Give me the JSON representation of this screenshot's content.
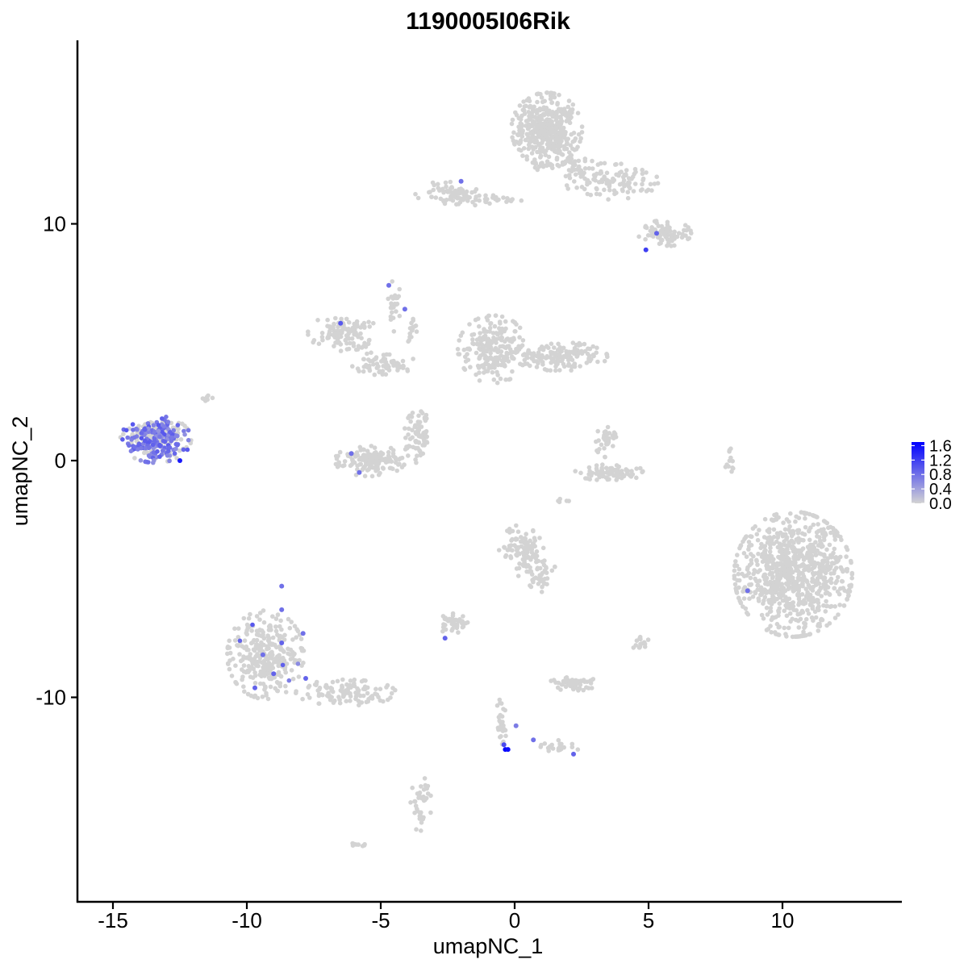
{
  "chart_data": {
    "type": "scatter",
    "title": "1190005I06Rik",
    "xlabel": "umapNC_1",
    "ylabel": "umapNC_2",
    "xlim": [
      -16.5,
      14.5
    ],
    "ylim": [
      -18.5,
      17.5
    ],
    "x_ticks": [
      -15,
      -10,
      -5,
      0,
      5,
      10
    ],
    "x_tick_labels": [
      "-15",
      "-10",
      "-5",
      "0",
      "5",
      "10"
    ],
    "y_ticks": [
      -10,
      0,
      10
    ],
    "y_tick_labels": [
      "-10",
      "0",
      "10"
    ],
    "grid": false,
    "legend": {
      "position": "right",
      "type": "colorbar",
      "min": 0.0,
      "max": 1.7,
      "ticks": [
        0.0,
        0.4,
        0.8,
        1.2,
        1.6
      ],
      "tick_labels": [
        "0.0",
        "0.4",
        "0.8",
        "1.2",
        "1.6"
      ],
      "low_color": "#d3d3d3",
      "high_color": "#0000ff"
    },
    "clusters": [
      {
        "x": 1.2,
        "y": 14.0,
        "rx": 1.2,
        "ry": 1.4,
        "n": 420,
        "expr": 0
      },
      {
        "x": 3.6,
        "y": 11.8,
        "rx": 1.6,
        "ry": 0.7,
        "n": 110,
        "expr": 0
      },
      {
        "x": 5.6,
        "y": 9.6,
        "rx": 0.9,
        "ry": 0.5,
        "n": 80,
        "expr": 0
      },
      {
        "x": -2.5,
        "y": 11.3,
        "rx": 1.1,
        "ry": 0.45,
        "n": 70,
        "expr": 0
      },
      {
        "x": -0.8,
        "y": 11.0,
        "rx": 1.2,
        "ry": 0.25,
        "n": 30,
        "expr": 0
      },
      {
        "x": 2.0,
        "y": 12.5,
        "rx": 1.2,
        "ry": 0.4,
        "n": 40,
        "expr": 0
      },
      {
        "x": -6.4,
        "y": 5.4,
        "rx": 1.2,
        "ry": 0.7,
        "n": 120,
        "expr": 0
      },
      {
        "x": -4.9,
        "y": 4.1,
        "rx": 1.1,
        "ry": 0.45,
        "n": 70,
        "expr": 0
      },
      {
        "x": -4.5,
        "y": 6.4,
        "rx": 0.25,
        "ry": 1.1,
        "n": 25,
        "expr": 0
      },
      {
        "x": -3.8,
        "y": 5.6,
        "rx": 0.2,
        "ry": 0.9,
        "n": 15,
        "expr": 0
      },
      {
        "x": -0.8,
        "y": 4.7,
        "rx": 1.2,
        "ry": 1.3,
        "n": 220,
        "expr": 0
      },
      {
        "x": 1.7,
        "y": 4.4,
        "rx": 1.6,
        "ry": 0.55,
        "n": 150,
        "expr": 0
      },
      {
        "x": -5.4,
        "y": 0.0,
        "rx": 1.2,
        "ry": 0.6,
        "n": 150,
        "expr": 0
      },
      {
        "x": -3.6,
        "y": 1.0,
        "rx": 0.5,
        "ry": 1.0,
        "n": 80,
        "expr": 0
      },
      {
        "x": 3.5,
        "y": -0.5,
        "rx": 1.3,
        "ry": 0.3,
        "n": 80,
        "expr": 0
      },
      {
        "x": 3.5,
        "y": 0.9,
        "rx": 0.5,
        "ry": 0.7,
        "n": 40,
        "expr": 0
      },
      {
        "x": 1.8,
        "y": -1.7,
        "rx": 0.25,
        "ry": 0.1,
        "n": 5,
        "expr": 0
      },
      {
        "x": 0.3,
        "y": -3.8,
        "rx": 0.8,
        "ry": 1.0,
        "n": 100,
        "expr": 0
      },
      {
        "x": 1.0,
        "y": -4.8,
        "rx": 0.5,
        "ry": 0.7,
        "n": 40,
        "expr": 0
      },
      {
        "x": 10.4,
        "y": -4.8,
        "rx": 2.0,
        "ry": 2.4,
        "n": 900,
        "expr": 0
      },
      {
        "x": -9.3,
        "y": -8.2,
        "rx": 1.3,
        "ry": 1.7,
        "n": 320,
        "expr": 0.03
      },
      {
        "x": -6.3,
        "y": -9.8,
        "rx": 1.7,
        "ry": 0.5,
        "n": 110,
        "expr": 0
      },
      {
        "x": -2.3,
        "y": -6.9,
        "rx": 0.5,
        "ry": 0.4,
        "n": 40,
        "expr": 0
      },
      {
        "x": 2.2,
        "y": -9.4,
        "rx": 0.8,
        "ry": 0.3,
        "n": 60,
        "expr": 0
      },
      {
        "x": 4.7,
        "y": -7.7,
        "rx": 0.3,
        "ry": 0.3,
        "n": 15,
        "expr": 0
      },
      {
        "x": -3.5,
        "y": -14.5,
        "rx": 0.35,
        "ry": 1.1,
        "n": 40,
        "expr": 0
      },
      {
        "x": -0.5,
        "y": -11.0,
        "rx": 0.2,
        "ry": 0.9,
        "n": 30,
        "expr": 0.05
      },
      {
        "x": 1.5,
        "y": -12.1,
        "rx": 0.9,
        "ry": 0.3,
        "n": 25,
        "expr": 0
      },
      {
        "x": -5.9,
        "y": -16.2,
        "rx": 0.3,
        "ry": 0.1,
        "n": 8,
        "expr": 0
      },
      {
        "x": 8.0,
        "y": -0.2,
        "rx": 0.2,
        "ry": 0.8,
        "n": 12,
        "expr": 0
      },
      {
        "x": -13.4,
        "y": 0.9,
        "rx": 1.2,
        "ry": 0.9,
        "n": 320,
        "expr": 0.5
      },
      {
        "x": -11.6,
        "y": 2.6,
        "rx": 0.3,
        "ry": 0.15,
        "n": 8,
        "expr": 0.05
      }
    ],
    "highlighted_points": [
      {
        "x": -0.35,
        "y": -12.2,
        "value": 1.65
      },
      {
        "x": -0.25,
        "y": -12.2,
        "value": 1.6
      },
      {
        "x": -0.4,
        "y": -12.0,
        "value": 1.1
      },
      {
        "x": 0.05,
        "y": -11.2,
        "value": 0.7
      },
      {
        "x": 0.7,
        "y": -11.8,
        "value": 0.8
      },
      {
        "x": 2.2,
        "y": -12.4,
        "value": 0.9
      },
      {
        "x": -2.6,
        "y": -7.5,
        "value": 0.9
      },
      {
        "x": -8.7,
        "y": -5.3,
        "value": 0.8
      },
      {
        "x": -8.7,
        "y": -6.3,
        "value": 0.8
      },
      {
        "x": -8.7,
        "y": -7.7,
        "value": 0.9
      },
      {
        "x": -9.4,
        "y": -8.2,
        "value": 0.8
      },
      {
        "x": -9.0,
        "y": -9.0,
        "value": 0.9
      },
      {
        "x": -7.9,
        "y": -7.3,
        "value": 0.8
      },
      {
        "x": -7.8,
        "y": -9.2,
        "value": 0.9
      },
      {
        "x": -9.7,
        "y": -9.6,
        "value": 0.9
      },
      {
        "x": -4.7,
        "y": 7.4,
        "value": 0.8
      },
      {
        "x": -4.1,
        "y": 6.4,
        "value": 0.8
      },
      {
        "x": -6.5,
        "y": 5.8,
        "value": 1.0
      },
      {
        "x": -2.0,
        "y": 11.8,
        "value": 0.8
      },
      {
        "x": 5.3,
        "y": 9.6,
        "value": 0.9
      },
      {
        "x": 4.9,
        "y": 8.9,
        "value": 1.2
      },
      {
        "x": -6.1,
        "y": 0.3,
        "value": 0.8
      },
      {
        "x": -5.8,
        "y": -0.5,
        "value": 0.8
      },
      {
        "x": 8.7,
        "y": -5.5,
        "value": 0.8
      },
      {
        "x": -12.5,
        "y": 0.0,
        "value": 1.5
      }
    ]
  }
}
